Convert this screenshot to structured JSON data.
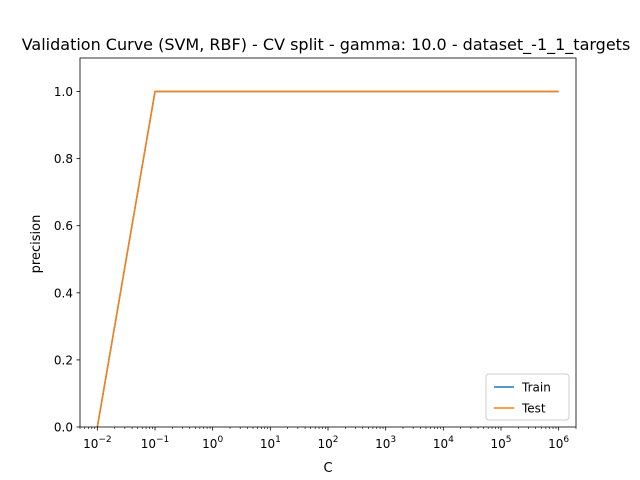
{
  "chart_data": {
    "type": "line",
    "title": "Validation Curve (SVM, RBF) - CV split - gamma: 10.0 - dataset_-1_1_targets",
    "xlabel": "C",
    "ylabel": "precision",
    "xscale": "log",
    "xlim": [
      0.005,
      2000000
    ],
    "ylim": [
      0,
      1.1
    ],
    "x": [
      0.01,
      0.1,
      1,
      10,
      100,
      1000,
      10000,
      100000,
      1000000
    ],
    "x_ticks": [
      {
        "value": 0.01,
        "exp": "−2"
      },
      {
        "value": 0.1,
        "exp": "−1"
      },
      {
        "value": 1,
        "exp": "0"
      },
      {
        "value": 10,
        "exp": "1"
      },
      {
        "value": 100,
        "exp": "2"
      },
      {
        "value": 1000,
        "exp": "3"
      },
      {
        "value": 10000,
        "exp": "4"
      },
      {
        "value": 100000,
        "exp": "5"
      },
      {
        "value": 1000000,
        "exp": "6"
      }
    ],
    "x_tick_base": "10",
    "y_ticks": [
      {
        "value": 0.0,
        "label": "0.0"
      },
      {
        "value": 0.2,
        "label": "0.2"
      },
      {
        "value": 0.4,
        "label": "0.4"
      },
      {
        "value": 0.6,
        "label": "0.6"
      },
      {
        "value": 0.8,
        "label": "0.8"
      },
      {
        "value": 1.0,
        "label": "1.0"
      }
    ],
    "series": [
      {
        "name": "Train",
        "color": "#1f77b4",
        "values": [
          0,
          1,
          1,
          1,
          1,
          1,
          1,
          1,
          1
        ]
      },
      {
        "name": "Test",
        "color": "#ff7f0e",
        "values": [
          0,
          1,
          1,
          1,
          1,
          1,
          1,
          1,
          1
        ]
      }
    ],
    "legend": "lower-right",
    "grid": false
  }
}
